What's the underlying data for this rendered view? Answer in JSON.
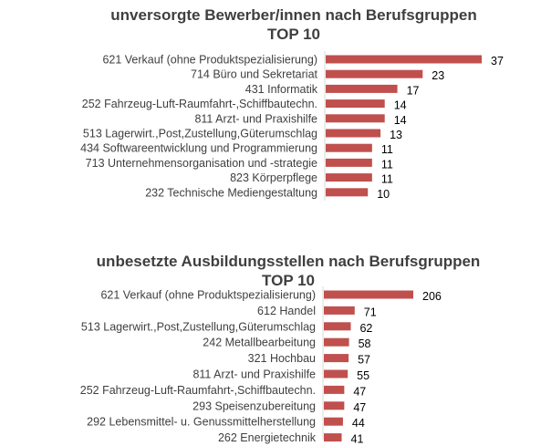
{
  "chart_data": [
    {
      "type": "bar",
      "orientation": "horizontal",
      "title": "unversorgte Bewerber/innen nach Berufsgruppen",
      "subtitle": "TOP 10",
      "categories": [
        "621 Verkauf (ohne Produktspezialisierung)",
        "714 Büro und Sekretariat",
        "431 Informatik",
        "252 Fahrzeug-Luft-Raumfahrt-,Schiffbautechn.",
        "811 Arzt- und Praxishilfe",
        "513 Lagerwirt.,Post,Zustellung,Güterumschlag",
        "434 Softwareentwicklung und Programmierung",
        "713 Unternehmensorganisation und -strategie",
        "823 Körperpflege",
        "232 Technische Mediengestaltung"
      ],
      "values": [
        37,
        23,
        17,
        14,
        14,
        13,
        11,
        11,
        11,
        10
      ],
      "xlim": [
        0,
        37
      ],
      "bar_color": "#c0504d",
      "grid": false,
      "legend": false
    },
    {
      "type": "bar",
      "orientation": "horizontal",
      "title": "unbesetzte Ausbildungsstellen nach Berufsgruppen",
      "subtitle": "TOP 10",
      "categories": [
        "621 Verkauf (ohne Produktspezialisierung)",
        "612 Handel",
        "513 Lagerwirt.,Post,Zustellung,Güterumschlag",
        "242 Metallbearbeitung",
        "321 Hochbau",
        "811 Arzt- und Praxishilfe",
        "252 Fahrzeug-Luft-Raumfahrt-,Schiffbautechn.",
        "293 Speisenzubereitung",
        "292 Lebensmittel- u. Genussmittelherstellung",
        "262 Energietechnik"
      ],
      "values": [
        206,
        71,
        62,
        58,
        57,
        55,
        47,
        47,
        44,
        41
      ],
      "xlim": [
        0,
        206
      ],
      "bar_color": "#c0504d",
      "grid": false,
      "legend": false
    }
  ]
}
